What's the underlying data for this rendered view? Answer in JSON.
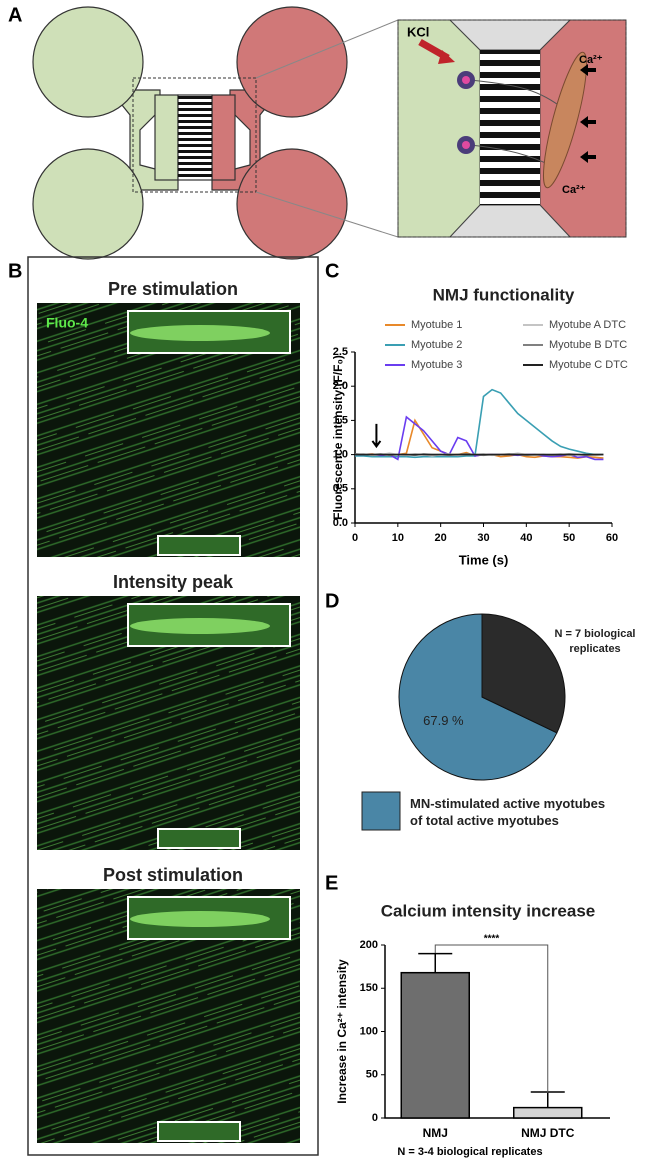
{
  "panel_a": {
    "label": "A",
    "kcl": "KCl",
    "ca_top": "Ca²⁺",
    "ca_bottom": "Ca²⁺"
  },
  "panel_b": {
    "label": "B",
    "dye": "Fluo-4",
    "images": [
      {
        "title": "Pre stimulation"
      },
      {
        "title": "Intensity peak"
      },
      {
        "title": "Post stimulation"
      }
    ]
  },
  "chart_data": [
    {
      "label": "C",
      "type": "line",
      "title": "NMJ functionality",
      "xlabel": "Time (s)",
      "ylabel": "Fluorescence intensity (F/F₀)",
      "x": [
        0,
        2,
        4,
        6,
        8,
        10,
        12,
        14,
        16,
        18,
        20,
        22,
        24,
        26,
        28,
        30,
        32,
        34,
        36,
        38,
        40,
        42,
        44,
        46,
        48,
        50,
        52,
        54,
        56,
        58
      ],
      "series": [
        {
          "name": "Myotube 1",
          "color": "#e8892a",
          "values": [
            1.0,
            1.0,
            1.01,
            0.99,
            1.0,
            1.0,
            1.02,
            1.5,
            1.3,
            1.1,
            1.05,
            1.0,
            1.0,
            1.03,
            0.98,
            1.0,
            1.0,
            0.97,
            0.98,
            1.0,
            0.97,
            0.96,
            0.98,
            0.97,
            0.97,
            0.96,
            0.95,
            0.97,
            0.96,
            0.95
          ]
        },
        {
          "name": "Myotube 2",
          "color": "#3a9fb3",
          "values": [
            0.98,
            0.98,
            0.97,
            0.97,
            0.97,
            0.97,
            0.97,
            0.96,
            0.97,
            0.97,
            0.97,
            0.97,
            0.97,
            0.98,
            0.98,
            1.85,
            1.95,
            1.9,
            1.75,
            1.6,
            1.5,
            1.4,
            1.3,
            1.2,
            1.12,
            1.08,
            1.05,
            1.02,
            1.0,
            1.0
          ]
        },
        {
          "name": "Myotube 3",
          "color": "#6a3df0",
          "values": [
            1.0,
            1.0,
            1.0,
            0.99,
            1.0,
            0.93,
            1.55,
            1.45,
            1.35,
            1.2,
            1.05,
            1.0,
            1.25,
            1.2,
            0.98,
            1.0,
            1.0,
            1.0,
            1.0,
            0.99,
            1.0,
            1.0,
            0.98,
            0.97,
            0.98,
            1.0,
            0.96,
            0.97,
            0.93,
            0.93
          ]
        },
        {
          "name": "Myotube A DTC",
          "color": "#c4c4c4",
          "values": [
            1.0,
            1.01,
            0.99,
            1.0,
            1.02,
            1.0,
            0.99,
            1.01,
            1.0,
            0.98,
            1.0,
            1.01,
            0.99,
            1.0,
            1.0,
            1.01,
            0.99,
            1.0,
            1.0,
            1.02,
            1.0,
            0.99,
            1.0,
            1.0,
            1.01,
            0.99,
            1.0,
            1.0,
            0.99,
            1.0
          ]
        },
        {
          "name": "Myotube B DTC",
          "color": "#808080",
          "values": [
            1.01,
            1.0,
            1.0,
            1.01,
            0.99,
            1.0,
            1.0,
            0.99,
            1.01,
            1.0,
            1.0,
            0.99,
            1.0,
            1.01,
            1.0,
            0.99,
            1.0,
            1.0,
            1.01,
            1.0,
            0.99,
            1.0,
            1.0,
            0.99,
            1.0,
            1.01,
            1.0,
            0.99,
            1.0,
            1.0
          ]
        },
        {
          "name": "Myotube C DTC",
          "color": "#222222",
          "values": [
            1.0,
            1.0,
            1.0,
            1.0,
            1.0,
            1.0,
            1.0,
            1.0,
            1.0,
            1.0,
            1.0,
            1.0,
            1.0,
            1.0,
            1.0,
            1.0,
            1.0,
            1.0,
            1.0,
            1.0,
            1.0,
            1.0,
            1.0,
            1.0,
            1.0,
            1.0,
            1.0,
            1.0,
            1.0,
            1.0
          ]
        }
      ],
      "xlim": [
        0,
        60
      ],
      "ylim": [
        0,
        2.5
      ],
      "xticks": [
        0,
        10,
        20,
        30,
        40,
        50,
        60
      ],
      "yticks": [
        {
          "value": 0,
          "label": "0.0"
        },
        0.5,
        {
          "value": 1,
          "label": "1.0"
        },
        1.5,
        {
          "value": 2,
          "label": "2.0"
        },
        2.5
      ],
      "legend": "top"
    },
    {
      "label": "D",
      "type": "pie",
      "categories": [
        "MN-stimulated active myotubes of total active myotubes",
        null
      ],
      "values": [
        67.9,
        32.1
      ],
      "colors": [
        "#4a86a6",
        "#2b2b2b"
      ],
      "value_labels": [
        "67.9 %",
        null
      ],
      "note": "N = 7 biological replicates"
    },
    {
      "label": "E",
      "type": "bar",
      "title": "Calcium intensity increase",
      "ylabel": "Increase in Ca²⁺ intensity",
      "categories": [
        "NMJ",
        "NMJ DTC"
      ],
      "values": [
        168,
        12
      ],
      "errors": [
        22,
        18
      ],
      "colors": [
        "#6e6e6e",
        "#d4d4d4"
      ],
      "ylim": [
        0,
        200
      ],
      "yticks": [
        0,
        50,
        100,
        150,
        200
      ],
      "annotation": "****",
      "note": "N = 3-4 biological replicates"
    }
  ]
}
